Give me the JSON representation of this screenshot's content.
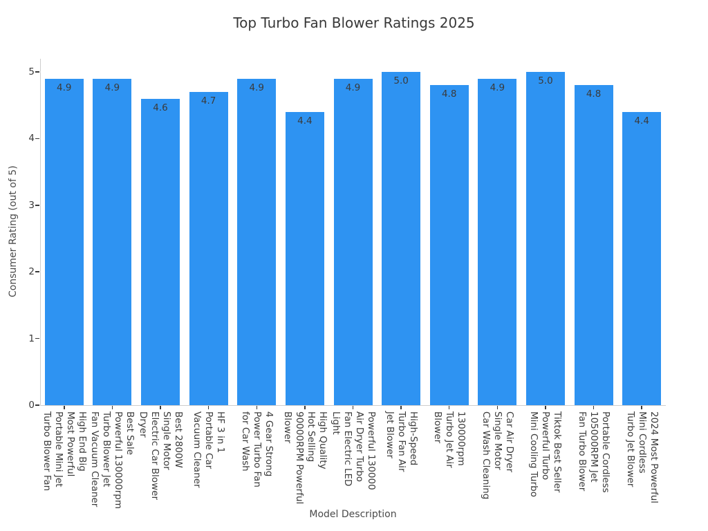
{
  "chart_data": {
    "type": "bar",
    "title": "Top Turbo Fan Blower Ratings 2025",
    "xlabel": "Model Description",
    "ylabel": "Consumer Rating (out of 5)",
    "ylim": [
      0,
      5
    ],
    "yticks": [
      0,
      1,
      2,
      3,
      4,
      5
    ],
    "grid": false,
    "legend": false,
    "bar_color": "#2E93F2",
    "categories": [
      [
        "High End Big",
        "Most Powerful",
        "Portable Mini Jet",
        "Turbo Blower Fan"
      ],
      [
        "Best Sale",
        "Powerful 130000rpm",
        "Turbo Blower Jet",
        "Fan Vacuum Cleaner"
      ],
      [
        "Best 2800W",
        "Single Motor",
        "Electric Car Blower",
        "Dryer"
      ],
      [
        "HF 3 in 1",
        "Portable Car",
        "Vacuum Cleaner"
      ],
      [
        "4 Gear Strong",
        "Power Turbo Fan",
        "for Car Wash"
      ],
      [
        "High Quality",
        "Hot Selling",
        "90000RPM Powerful",
        "Blower"
      ],
      [
        "Powerful 130000",
        "Air Dryer Turbo",
        "Fan Electric LED",
        "Light"
      ],
      [
        "High-Speed",
        "Turbo Fan Air",
        "Jet Blower"
      ],
      [
        "130000rpm",
        "Turbo Jet Air",
        "Blower"
      ],
      [
        "Car Air Dryer",
        "Single Motor",
        "Car Wash Cleaning"
      ],
      [
        "Tiktok Best Seller",
        "Powerful Turbo",
        "Mini Cooling Turbo"
      ],
      [
        "Portable Cordless",
        "105000RPM Jet",
        "Fan Turbo Blower"
      ],
      [
        "2024 Most Powerful",
        "Mini Cordless",
        "Turbo Jet Blower"
      ]
    ],
    "values": [
      4.9,
      4.9,
      4.6,
      4.7,
      4.9,
      4.4,
      4.9,
      5.0,
      4.8,
      4.9,
      5.0,
      4.8,
      4.4
    ]
  }
}
